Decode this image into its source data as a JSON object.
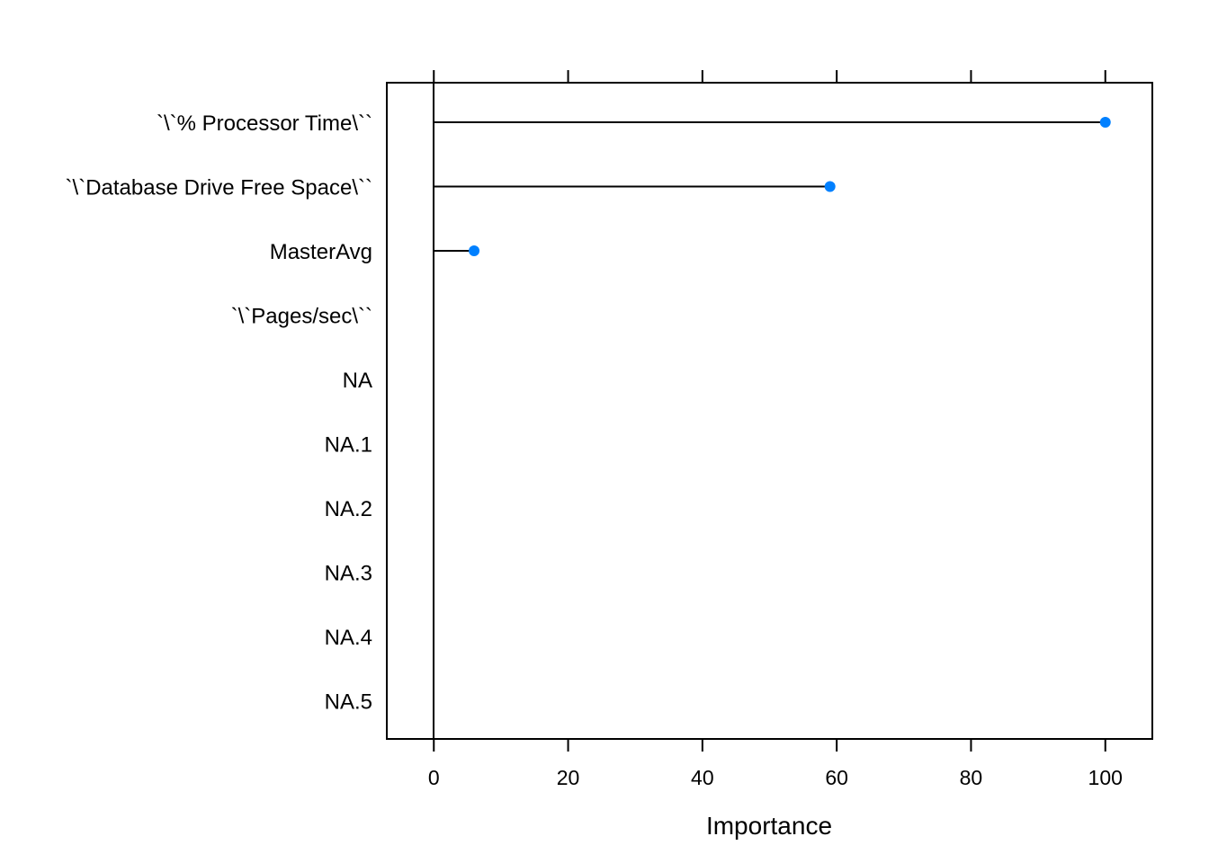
{
  "chart_data": {
    "type": "dot",
    "title": "",
    "xlabel": "Importance",
    "ylabel": "",
    "xlim": [
      -7,
      107
    ],
    "xticks": [
      0,
      20,
      40,
      60,
      80,
      100
    ],
    "xtick_labels": [
      "0",
      "20",
      "40",
      "60",
      "80",
      "100"
    ],
    "categories": [
      "`\\`% Processor Time\\``",
      "`\\`Database Drive Free Space\\``",
      "MasterAvg",
      "`\\`Pages/sec\\``",
      "NA",
      "NA.1",
      "NA.2",
      "NA.3",
      "NA.4",
      "NA.5"
    ],
    "values": [
      100,
      59,
      6,
      0,
      0,
      0,
      0,
      0,
      0,
      0
    ],
    "point_color": "#0080ff",
    "line_color": "#000000",
    "grid": false
  }
}
